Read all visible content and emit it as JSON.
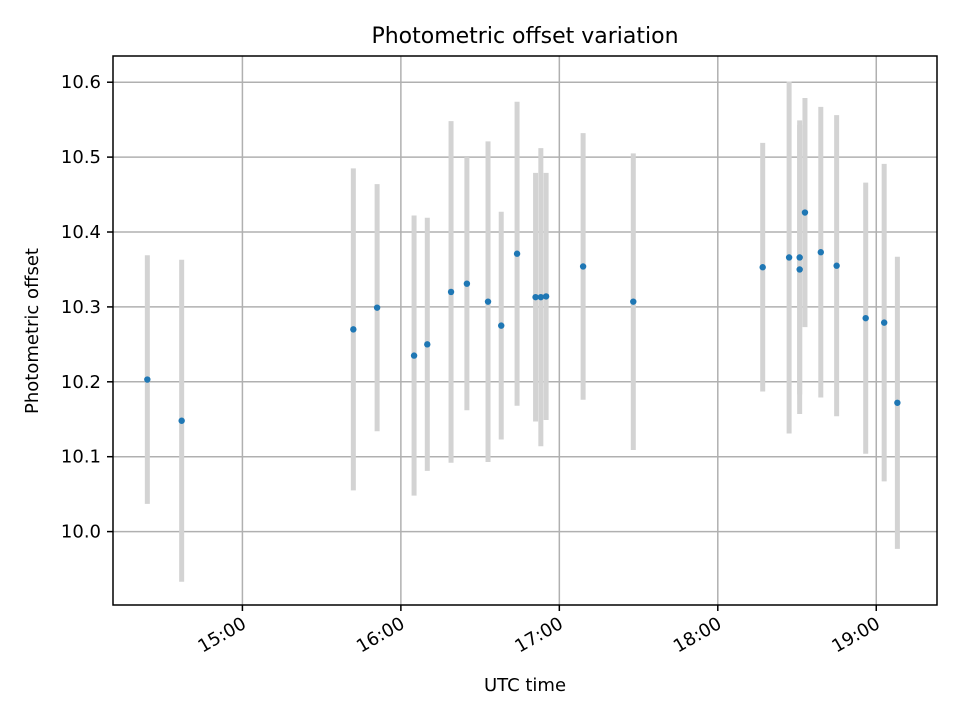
{
  "chart_data": {
    "type": "scatter",
    "title": "Photometric offset variation",
    "xlabel": "UTC time",
    "ylabel": "Photometric offset",
    "x_unit": "UTC time (HH:MM)",
    "xlim": [
      "14:11",
      "19:23"
    ],
    "ylim": [
      9.902,
      10.635
    ],
    "xticks": [
      "15:00",
      "16:00",
      "17:00",
      "18:00",
      "19:00"
    ],
    "yticks": [
      "10.0",
      "10.1",
      "10.2",
      "10.3",
      "10.4",
      "10.5",
      "10.6"
    ],
    "grid": true,
    "legend": "none",
    "colors": {
      "points": "#1f77b4",
      "errorbars": "#d3d3d3",
      "grid": "#b0b0b0"
    },
    "series": [
      {
        "points": [
          {
            "x": "14:24",
            "y": 10.203,
            "err": 0.166
          },
          {
            "x": "14:37",
            "y": 10.148,
            "err": 0.215
          },
          {
            "x": "15:42",
            "y": 10.27,
            "err": 0.215
          },
          {
            "x": "15:51",
            "y": 10.299,
            "err": 0.165
          },
          {
            "x": "16:05",
            "y": 10.235,
            "err": 0.187
          },
          {
            "x": "16:10",
            "y": 10.25,
            "err": 0.169
          },
          {
            "x": "16:19",
            "y": 10.32,
            "err": 0.228
          },
          {
            "x": "16:25",
            "y": 10.331,
            "err": 0.169
          },
          {
            "x": "16:33",
            "y": 10.307,
            "err": 0.214
          },
          {
            "x": "16:38",
            "y": 10.275,
            "err": 0.152
          },
          {
            "x": "16:44",
            "y": 10.371,
            "err": 0.203
          },
          {
            "x": "16:51",
            "y": 10.313,
            "err": 0.166
          },
          {
            "x": "16:53",
            "y": 10.313,
            "err": 0.199
          },
          {
            "x": "16:55",
            "y": 10.314,
            "err": 0.165
          },
          {
            "x": "17:09",
            "y": 10.354,
            "err": 0.178
          },
          {
            "x": "17:28",
            "y": 10.307,
            "err": 0.198
          },
          {
            "x": "18:17",
            "y": 10.353,
            "err": 0.166
          },
          {
            "x": "18:27",
            "y": 10.366,
            "err": 0.235
          },
          {
            "x": "18:31",
            "y": 10.366,
            "err": 0.183
          },
          {
            "x": "18:31",
            "y": 10.35,
            "err": 0.193
          },
          {
            "x": "18:33",
            "y": 10.426,
            "err": 0.153
          },
          {
            "x": "18:39",
            "y": 10.373,
            "err": 0.194
          },
          {
            "x": "18:45",
            "y": 10.355,
            "err": 0.201
          },
          {
            "x": "18:56",
            "y": 10.285,
            "err": 0.181
          },
          {
            "x": "19:03",
            "y": 10.279,
            "err": 0.212
          },
          {
            "x": "19:08",
            "y": 10.172,
            "err": 0.195
          }
        ]
      }
    ]
  }
}
